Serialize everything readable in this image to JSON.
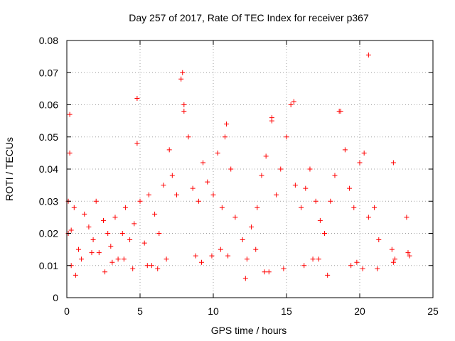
{
  "chart_data": {
    "type": "scatter",
    "title": "Day 257 of 2017, Rate Of TEC Index for receiver p367",
    "xlabel": "GPS time / hours",
    "ylabel": "ROTI / TECUs",
    "xlim": [
      0,
      25
    ],
    "ylim": [
      0,
      0.08
    ],
    "xticks": [
      "0",
      "5",
      "10",
      "15",
      "20",
      "25"
    ],
    "yticks": [
      "0",
      "0.01",
      "0.02",
      "0.03",
      "0.04",
      "0.05",
      "0.06",
      "0.07",
      "0.08"
    ],
    "grid": true,
    "marker": "+",
    "color": "#ff0000",
    "series": [
      {
        "x": [
          0.1,
          0.2,
          0.3,
          0.5,
          0.8,
          1.0,
          1.2,
          1.5,
          1.8,
          2.0,
          2.2,
          2.5,
          2.8,
          3.0,
          3.3,
          3.5,
          3.8,
          4.0,
          4.3,
          4.6,
          4.8,
          5.0,
          5.3,
          5.6,
          6.0,
          6.3,
          6.6,
          7.0,
          7.2,
          7.5,
          7.8,
          8.0,
          8.3,
          8.6,
          9.0,
          9.3,
          9.6,
          10.0,
          10.3,
          10.6,
          10.9,
          11.2,
          11.5,
          12.0,
          12.3,
          12.6,
          13.0,
          13.3,
          13.6,
          14.0,
          14.3,
          14.6,
          15.0,
          15.3,
          15.6,
          16.0,
          16.3,
          16.6,
          17.0,
          17.3,
          17.6,
          18.0,
          18.3,
          18.6,
          19.0,
          19.3,
          19.6,
          20.0,
          20.3,
          20.6,
          21.0,
          21.3,
          22.2,
          22.4,
          23.2,
          23.4,
          0.2,
          0.1,
          4.8,
          7.9,
          8.0,
          15.5,
          18.7,
          20.6,
          22.3,
          14.0,
          12.9,
          10.8,
          0.3,
          2.6,
          4.5,
          6.8,
          9.2,
          11.0,
          13.5,
          16.2,
          17.8,
          19.8,
          21.2,
          1.7,
          3.9,
          5.8,
          8.8,
          12.2,
          14.8,
          17.2,
          19.4,
          0.6,
          3.1,
          6.2,
          9.9,
          13.8,
          16.8,
          20.2,
          23.3,
          22.3,
          5.5,
          10.5
        ],
        "y": [
          0.03,
          0.045,
          0.021,
          0.028,
          0.015,
          0.012,
          0.026,
          0.022,
          0.018,
          0.03,
          0.014,
          0.024,
          0.02,
          0.016,
          0.025,
          0.012,
          0.02,
          0.028,
          0.018,
          0.023,
          0.048,
          0.03,
          0.017,
          0.032,
          0.026,
          0.02,
          0.035,
          0.046,
          0.038,
          0.032,
          0.068,
          0.058,
          0.05,
          0.034,
          0.03,
          0.042,
          0.036,
          0.032,
          0.045,
          0.028,
          0.054,
          0.04,
          0.025,
          0.018,
          0.012,
          0.022,
          0.028,
          0.038,
          0.044,
          0.056,
          0.032,
          0.04,
          0.05,
          0.06,
          0.035,
          0.028,
          0.034,
          0.04,
          0.03,
          0.024,
          0.02,
          0.03,
          0.038,
          0.058,
          0.046,
          0.034,
          0.028,
          0.042,
          0.045,
          0.025,
          0.028,
          0.018,
          0.015,
          0.012,
          0.025,
          0.013,
          0.057,
          0.02,
          0.062,
          0.07,
          0.06,
          0.061,
          0.058,
          0.0755,
          0.042,
          0.055,
          0.015,
          0.05,
          0.01,
          0.008,
          0.009,
          0.012,
          0.011,
          0.013,
          0.008,
          0.01,
          0.007,
          0.011,
          0.009,
          0.014,
          0.012,
          0.01,
          0.013,
          0.006,
          0.009,
          0.012,
          0.01,
          0.007,
          0.011,
          0.009,
          0.013,
          0.008,
          0.012,
          0.009,
          0.014,
          0.011,
          0.01,
          0.015
        ]
      }
    ]
  }
}
